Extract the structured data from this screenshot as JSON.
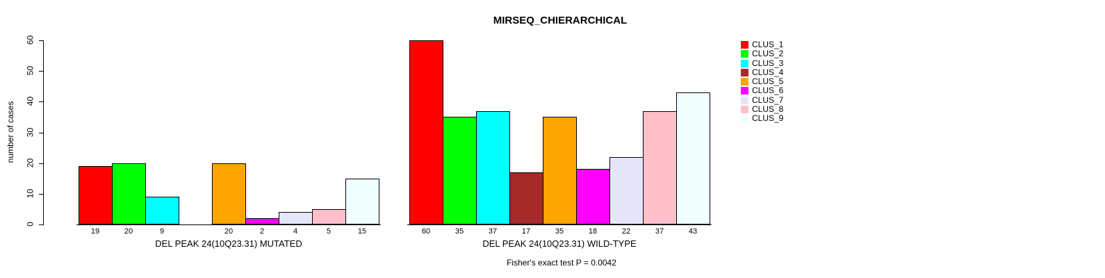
{
  "title": "MIRSEQ_CHIERARCHICAL",
  "footer": "Fisher's exact test P = 0.0042",
  "y_axis": {
    "label": "number of cases",
    "ticks": [
      0,
      10,
      20,
      30,
      40,
      50,
      60
    ],
    "min": 0,
    "max": 60
  },
  "groups": [
    {
      "label": "DEL PEAK 24(10Q23.31) MUTATED",
      "values": [
        19,
        20,
        9,
        0,
        20,
        2,
        4,
        5,
        15
      ]
    },
    {
      "label": "DEL PEAK 24(10Q23.31) WILD-TYPE",
      "values": [
        60,
        35,
        37,
        17,
        35,
        18,
        22,
        37,
        43
      ]
    }
  ],
  "legend": [
    {
      "label": "CLUS_1",
      "color": "#FF0000"
    },
    {
      "label": "CLUS_2",
      "color": "#00FF00"
    },
    {
      "label": "CLUS_3",
      "color": "#00FFFF"
    },
    {
      "label": "CLUS_4",
      "color": "#A52A2A"
    },
    {
      "label": "CLUS_5",
      "color": "#FFA500"
    },
    {
      "label": "CLUS_6",
      "color": "#FF00FF"
    },
    {
      "label": "CLUS_7",
      "color": "#E6E6FA"
    },
    {
      "label": "CLUS_8",
      "color": "#FFC0CB"
    },
    {
      "label": "CLUS_9",
      "color": "#F0FFFF"
    }
  ],
  "chart_data": {
    "type": "bar",
    "title": "MIRSEQ_CHIERARCHICAL",
    "xlabel": "",
    "ylabel": "number of cases",
    "ylim": [
      0,
      60
    ],
    "yticks": [
      0,
      10,
      20,
      30,
      40,
      50,
      60
    ],
    "categories": [
      "CLUS_1",
      "CLUS_2",
      "CLUS_3",
      "CLUS_4",
      "CLUS_5",
      "CLUS_6",
      "CLUS_7",
      "CLUS_8",
      "CLUS_9"
    ],
    "series": [
      {
        "name": "DEL PEAK 24(10Q23.31) MUTATED",
        "values": [
          19,
          20,
          9,
          0,
          20,
          2,
          4,
          5,
          15
        ]
      },
      {
        "name": "DEL PEAK 24(10Q23.31) WILD-TYPE",
        "values": [
          60,
          35,
          37,
          17,
          35,
          18,
          22,
          37,
          43
        ]
      }
    ],
    "bar_colors": [
      "#FF0000",
      "#00FF00",
      "#00FFFF",
      "#A52A2A",
      "#FFA500",
      "#FF00FF",
      "#E6E6FA",
      "#FFC0CB",
      "#F0FFFF"
    ],
    "value_labels_shown": true,
    "legend_position": "right",
    "grid": false,
    "annotation": "Fisher's exact test P = 0.0042"
  }
}
